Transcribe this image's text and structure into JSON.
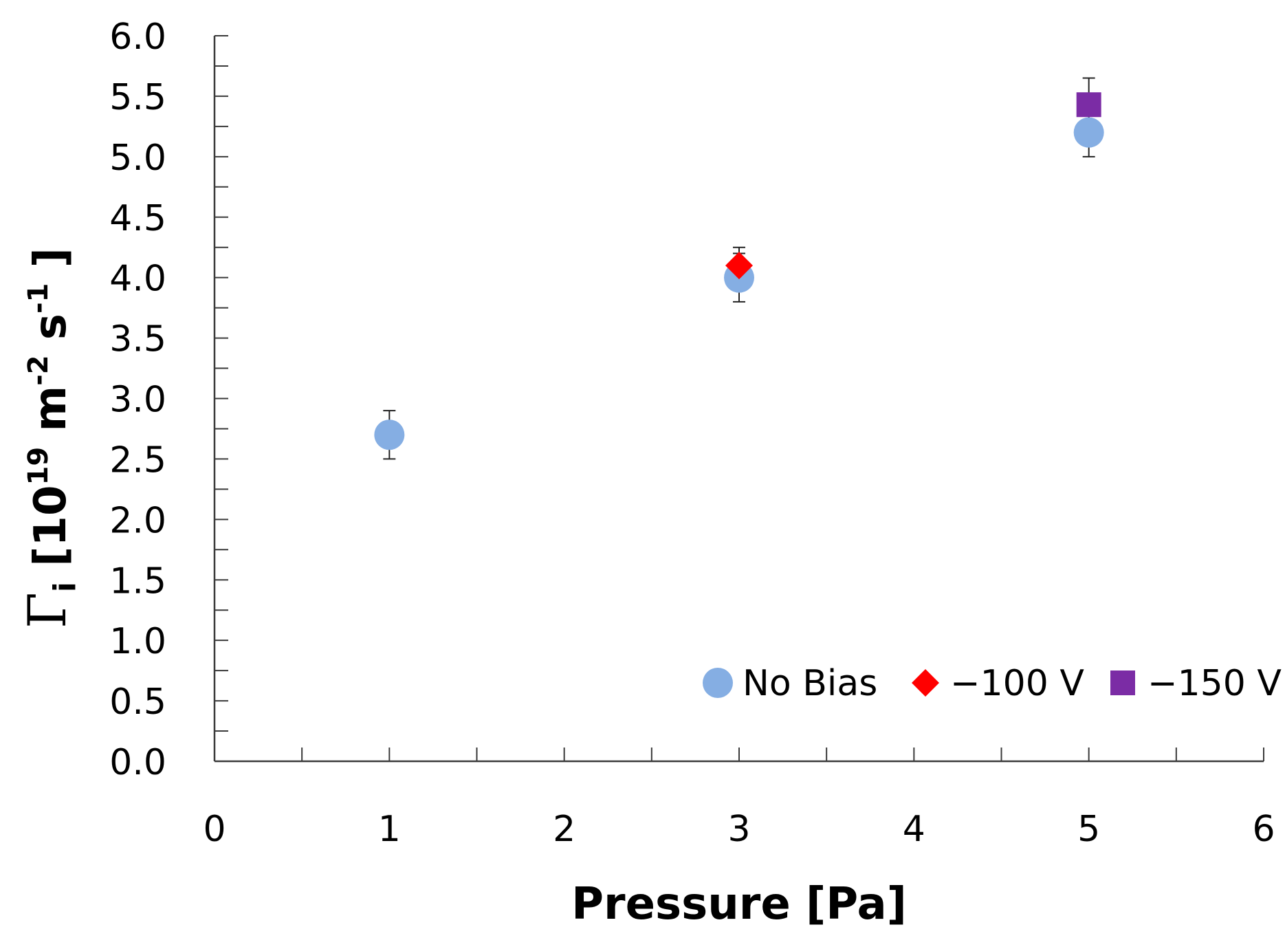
{
  "chart_data": {
    "type": "scatter",
    "xlabel": "Pressure [Pa]",
    "ylabel": {
      "symbol": "Γ",
      "subscript": "i",
      "open": " [10",
      "exponent1": "19",
      "unit_m": "  m",
      "exponent2": "-2",
      "unit_s": " s",
      "exponent3": "-1",
      "close": " ]"
    },
    "xlim": [
      0,
      6
    ],
    "ylim": [
      0,
      6
    ],
    "x_ticks": [
      0,
      1,
      2,
      3,
      4,
      5,
      6
    ],
    "x_tick_labels": [
      "0",
      "1",
      "2",
      "3",
      "4",
      "5",
      "6"
    ],
    "x_minor_step": 0.5,
    "y_ticks": [
      0,
      0.5,
      1,
      1.5,
      2,
      2.5,
      3,
      3.5,
      4,
      4.5,
      5,
      5.5,
      6
    ],
    "y_tick_labels": [
      "0.0",
      "0.5",
      "1.0",
      "1.5",
      "2.0",
      "2.5",
      "3.0",
      "3.5",
      "4.0",
      "4.5",
      "5.0",
      "5.5",
      "6.0"
    ],
    "y_minor_step": 0.25,
    "grid": false,
    "legend_position": "bottom-right",
    "series": [
      {
        "name": "No Bias",
        "marker": "circle",
        "color": "#85AEE3",
        "points": [
          {
            "x": 1,
            "y": 2.7,
            "err": 0.2
          },
          {
            "x": 3,
            "y": 4.0,
            "err": 0.2
          },
          {
            "x": 5,
            "y": 5.2,
            "err": 0.2
          }
        ]
      },
      {
        "name": "−100 V",
        "marker": "diamond",
        "color": "#FF0000",
        "points": [
          {
            "x": 3,
            "y": 4.1,
            "err": 0.15
          }
        ]
      },
      {
        "name": "−150 V",
        "marker": "square",
        "color": "#7B2CA5",
        "points": [
          {
            "x": 5,
            "y": 5.43,
            "err": 0.22
          }
        ]
      }
    ]
  }
}
